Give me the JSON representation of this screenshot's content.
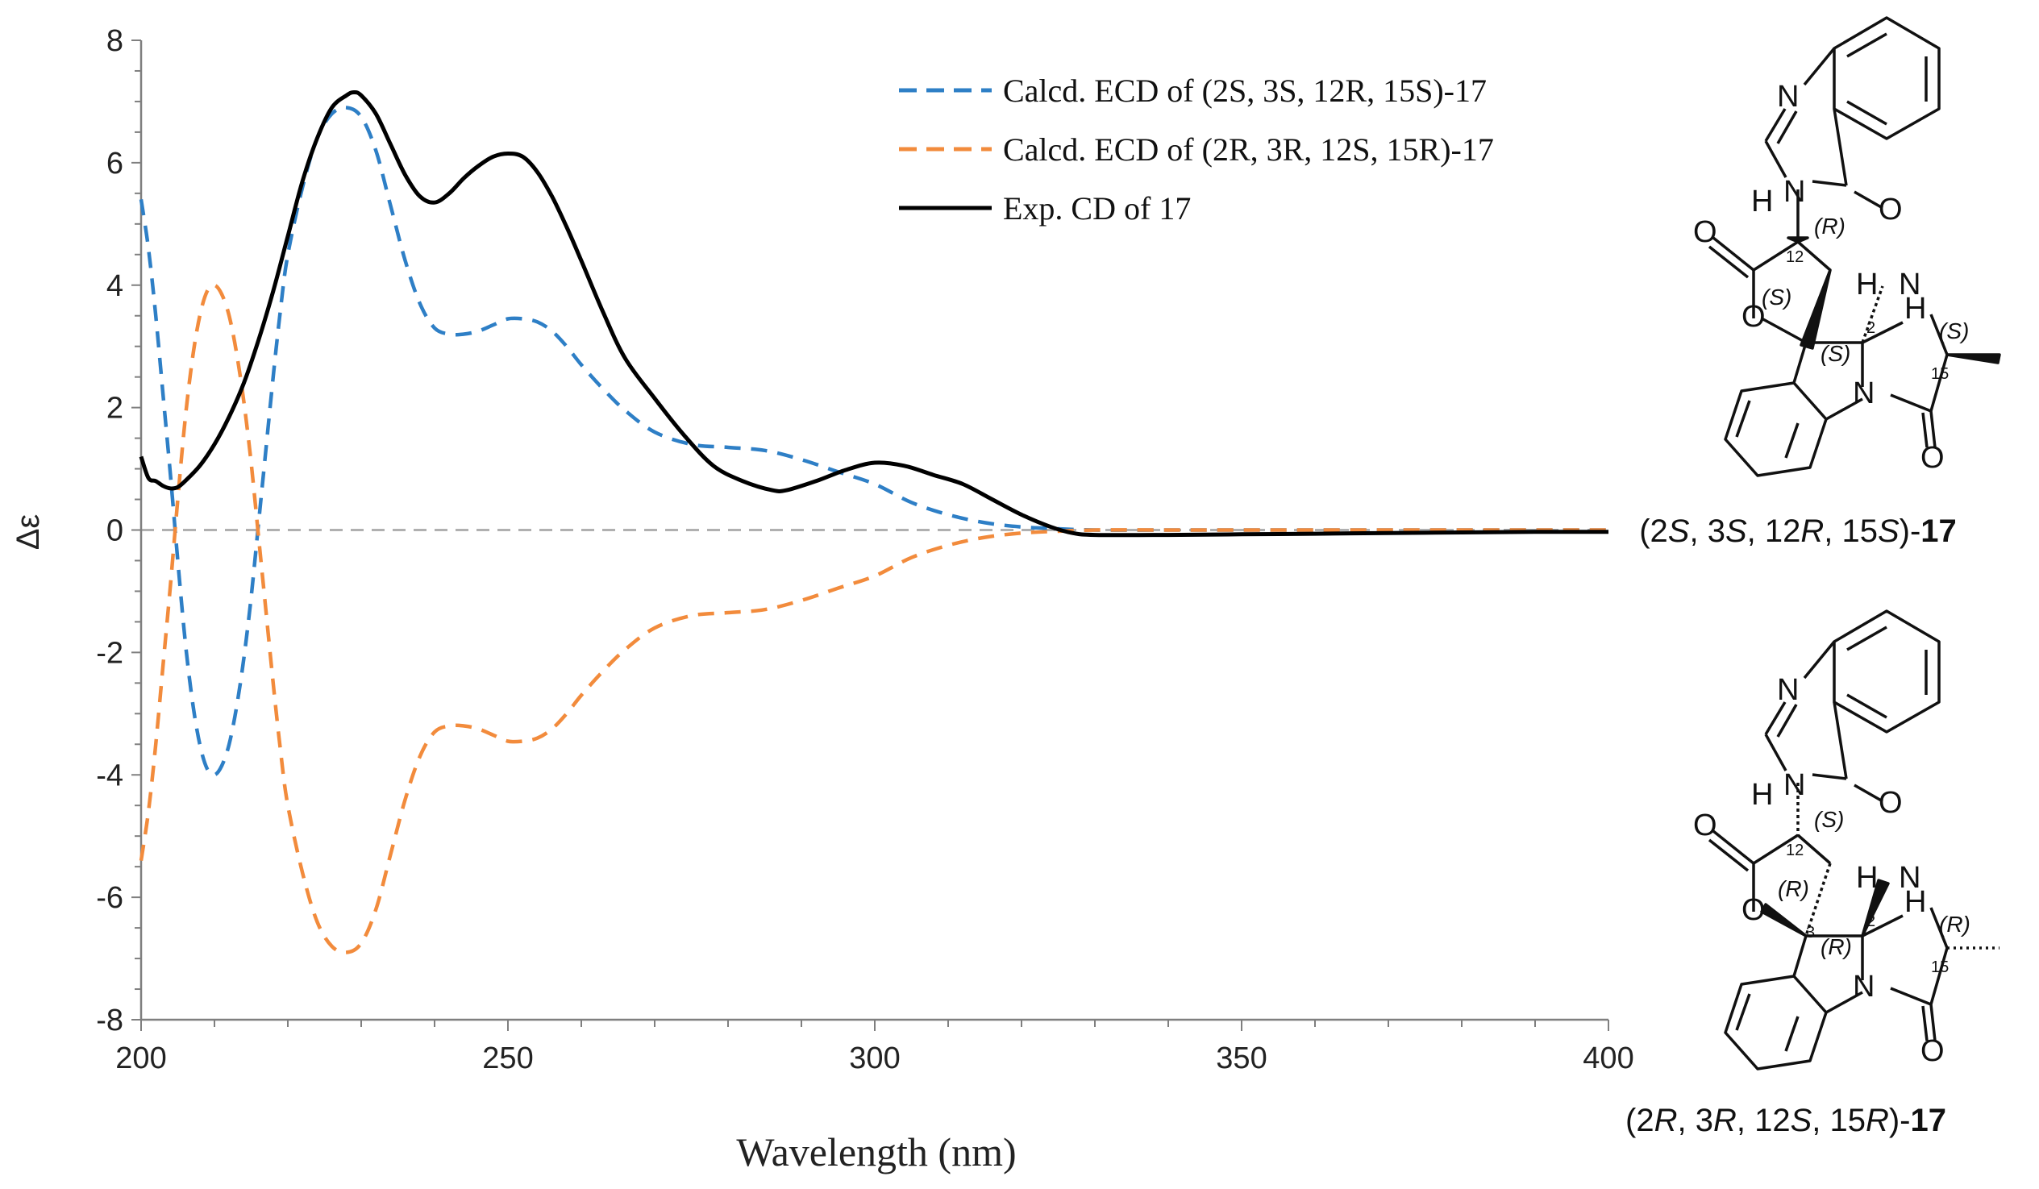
{
  "chart_data": {
    "type": "line",
    "xlabel": "Wavelength (nm)",
    "ylabel": "Δε",
    "xlim": [
      200,
      400
    ],
    "ylim": [
      -8,
      8
    ],
    "xticks": [
      200,
      250,
      300,
      350,
      400
    ],
    "xtick_labels": [
      "200",
      "250",
      "300",
      "350",
      "400"
    ],
    "yticks": [
      -8,
      -6,
      -4,
      -2,
      0,
      2,
      4,
      6,
      8
    ],
    "ytick_labels": [
      "-8",
      "-6",
      "-4",
      "-2",
      "0",
      "2",
      "4",
      "6",
      "8"
    ],
    "zero_line": true,
    "legend_position": "top-center",
    "series": [
      {
        "name": "Calcd. ECD of (2S, 3S, 12R, 15S)-17",
        "color": "#2e7fc6",
        "style": "dashed",
        "x": [
          200,
          201,
          202,
          203,
          204,
          205,
          206,
          207,
          208,
          209,
          210,
          211,
          212,
          213,
          214,
          215,
          216,
          217,
          218,
          219,
          220,
          222,
          224,
          226,
          228,
          230,
          232,
          234,
          236,
          238,
          240,
          242,
          244,
          246,
          248,
          250,
          252,
          254,
          256,
          258,
          260,
          263,
          266,
          270,
          275,
          280,
          285,
          290,
          295,
          300,
          305,
          310,
          315,
          320,
          325,
          330,
          340,
          350,
          360,
          370,
          380,
          390,
          400
        ],
        "values": [
          5.4,
          4.6,
          3.5,
          2.2,
          0.9,
          -0.5,
          -1.8,
          -2.8,
          -3.5,
          -3.9,
          -4.0,
          -3.85,
          -3.5,
          -2.9,
          -2.1,
          -1.1,
          0.1,
          1.3,
          2.5,
          3.6,
          4.5,
          5.6,
          6.4,
          6.8,
          6.9,
          6.75,
          6.2,
          5.3,
          4.4,
          3.7,
          3.3,
          3.2,
          3.2,
          3.25,
          3.35,
          3.45,
          3.45,
          3.4,
          3.25,
          3.0,
          2.7,
          2.3,
          1.95,
          1.6,
          1.4,
          1.35,
          1.3,
          1.15,
          0.95,
          0.75,
          0.45,
          0.25,
          0.12,
          0.05,
          0.02,
          0.0,
          0.0,
          0.0,
          0.0,
          0.0,
          0.0,
          0.0,
          0.0
        ]
      },
      {
        "name": "Calcd. ECD of (2R, 3R, 12S, 15R)-17",
        "color": "#f28b3c",
        "style": "dashed",
        "x": [
          200,
          201,
          202,
          203,
          204,
          205,
          206,
          207,
          208,
          209,
          210,
          211,
          212,
          213,
          214,
          215,
          216,
          217,
          218,
          219,
          220,
          222,
          224,
          226,
          228,
          230,
          232,
          234,
          236,
          238,
          240,
          242,
          244,
          246,
          248,
          250,
          252,
          254,
          256,
          258,
          260,
          263,
          266,
          270,
          275,
          280,
          285,
          290,
          295,
          300,
          305,
          310,
          315,
          320,
          325,
          330,
          340,
          350,
          360,
          370,
          380,
          390,
          400
        ],
        "values": [
          -5.4,
          -4.6,
          -3.5,
          -2.2,
          -0.9,
          0.5,
          1.8,
          2.8,
          3.5,
          3.9,
          4.0,
          3.85,
          3.5,
          2.9,
          2.1,
          1.1,
          -0.1,
          -1.3,
          -2.5,
          -3.6,
          -4.5,
          -5.6,
          -6.4,
          -6.8,
          -6.9,
          -6.75,
          -6.2,
          -5.3,
          -4.4,
          -3.7,
          -3.3,
          -3.2,
          -3.2,
          -3.25,
          -3.35,
          -3.45,
          -3.45,
          -3.4,
          -3.25,
          -3.0,
          -2.7,
          -2.3,
          -1.95,
          -1.6,
          -1.4,
          -1.35,
          -1.3,
          -1.15,
          -0.95,
          -0.75,
          -0.45,
          -0.25,
          -0.12,
          -0.05,
          -0.02,
          0.0,
          0.0,
          0.0,
          0.0,
          0.0,
          0.0,
          0.0,
          0.0
        ]
      },
      {
        "name": "Exp. CD of 17",
        "color": "#000000",
        "style": "solid",
        "x": [
          200,
          201,
          202,
          203,
          204,
          205,
          206,
          208,
          210,
          212,
          214,
          216,
          218,
          220,
          222,
          224,
          226,
          228,
          229,
          230,
          232,
          234,
          236,
          238,
          240,
          242,
          244,
          246,
          248,
          250,
          252,
          254,
          256,
          258,
          260,
          263,
          266,
          270,
          274,
          278,
          282,
          286,
          288,
          292,
          296,
          300,
          304,
          308,
          312,
          316,
          320,
          324,
          327,
          330,
          340,
          350,
          360,
          370,
          380,
          390,
          400
        ],
        "values": [
          1.2,
          0.85,
          0.8,
          0.72,
          0.68,
          0.7,
          0.8,
          1.05,
          1.4,
          1.85,
          2.4,
          3.1,
          3.9,
          4.8,
          5.7,
          6.4,
          6.9,
          7.1,
          7.15,
          7.1,
          6.8,
          6.3,
          5.8,
          5.45,
          5.35,
          5.5,
          5.75,
          5.95,
          6.1,
          6.15,
          6.1,
          5.85,
          5.45,
          4.95,
          4.4,
          3.55,
          2.8,
          2.15,
          1.55,
          1.05,
          0.8,
          0.65,
          0.65,
          0.8,
          0.98,
          1.1,
          1.05,
          0.9,
          0.75,
          0.5,
          0.25,
          0.05,
          -0.05,
          -0.08,
          -0.08,
          -0.07,
          -0.06,
          -0.05,
          -0.04,
          -0.03,
          -0.03
        ]
      }
    ]
  },
  "structures": [
    {
      "caption_prefix": "(2",
      "c1": "S",
      "sep1": ", 3",
      "c2": "S",
      "sep2": ", 12",
      "c3": "R",
      "sep3": ", 15",
      "c4": "S",
      "caption_suffix": ")-",
      "compound": "17",
      "atoms": {
        "N1": "N",
        "N2": "N",
        "O1": "O",
        "O2": "O",
        "O3": "O",
        "H1": "H",
        "H2": "H",
        "N3": "N",
        "H3": "H",
        "N4": "N",
        "O4": "O"
      },
      "stereo": {
        "c12": "(R)",
        "c3": "(S)",
        "c2": "(S)",
        "c15": "(S)"
      },
      "numbers": {
        "n12": "12",
        "n3": "3",
        "n2": "2",
        "n15": "15"
      }
    },
    {
      "caption_prefix": "(2",
      "c1": "R",
      "sep1": ", 3",
      "c2": "R",
      "sep2": ", 12",
      "c3": "S",
      "sep3": ", 15",
      "c4": "R",
      "caption_suffix": ")-",
      "compound": "17",
      "atoms": {
        "N1": "N",
        "N2": "N",
        "O1": "O",
        "O2": "O",
        "O3": "O",
        "H1": "H",
        "H2": "H",
        "N3": "N",
        "H3": "H",
        "N4": "N",
        "O4": "O"
      },
      "stereo": {
        "c12": "(S)",
        "c3": "(R)",
        "c2": "(R)",
        "c15": "(R)"
      },
      "numbers": {
        "n12": "12",
        "n3": "3",
        "n2": "2",
        "n15": "15"
      }
    }
  ]
}
